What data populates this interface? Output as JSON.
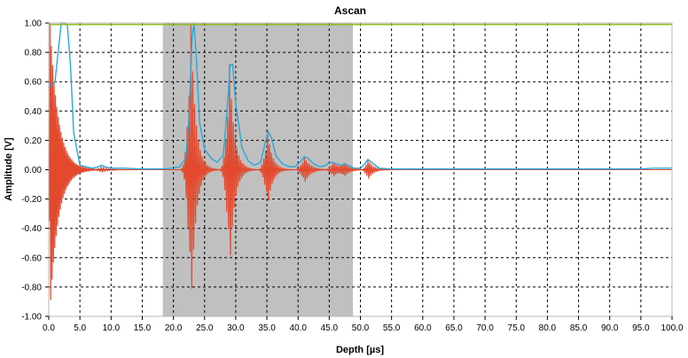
{
  "chart_data": {
    "type": "line",
    "title": "Ascan",
    "xlabel": "Depth [µs]",
    "ylabel": "Amplitude [V]",
    "xlim": [
      0,
      100
    ],
    "ylim": [
      -1,
      1
    ],
    "grid": true,
    "x_ticks": [
      0,
      5,
      10,
      15,
      20,
      25,
      30,
      35,
      40,
      45,
      50,
      55,
      60,
      65,
      70,
      75,
      80,
      85,
      90,
      95,
      100
    ],
    "x_tick_labels": [
      "0.0",
      "5.0",
      "10.0",
      "15.0",
      "20.0",
      "25.0",
      "30.0",
      "35.0",
      "40.0",
      "45.0",
      "50.0",
      "55.0",
      "60.0",
      "65.0",
      "70.0",
      "75.0",
      "80.0",
      "85.0",
      "90.0",
      "95.0",
      "100.0"
    ],
    "y_ticks": [
      1,
      0.8,
      0.6,
      0.4,
      0.2,
      0,
      -0.2,
      -0.4,
      -0.6,
      -0.8,
      -1
    ],
    "y_tick_labels": [
      "1.00",
      "0.80",
      "0.60",
      "0.40",
      "0.20",
      "0.00",
      "-0.20",
      "-0.40",
      "-0.60",
      "-0.80",
      "-1.00"
    ],
    "gate_region": {
      "x_start": 18.3,
      "x_end": 48.8,
      "color": "#c0c0c0"
    },
    "threshold_line": {
      "y": 0.99,
      "color": "#8fbc1e"
    },
    "colors": {
      "waveform": "#e2492d",
      "envelope": "#2aa8d8",
      "grid": "#000000",
      "frame": "#b4b4b4"
    },
    "series": [
      {
        "kind": "waveform",
        "color": "#e2492d",
        "pulses": [
          {
            "t0": 0.2,
            "amp": 1.0,
            "decay": 1.3,
            "rise": 0.1,
            "period": 0.22
          },
          {
            "t0": 22.8,
            "amp": 1.0,
            "decay": 0.75,
            "rise": 0.5,
            "period": 0.3
          },
          {
            "t0": 29.0,
            "amp": 0.72,
            "decay": 0.75,
            "rise": 0.5,
            "period": 0.3
          },
          {
            "t0": 35.1,
            "amp": 0.26,
            "decay": 0.75,
            "rise": 0.5,
            "period": 0.3
          },
          {
            "t0": 41.0,
            "amp": 0.09,
            "decay": 0.9,
            "rise": 0.5,
            "period": 0.3
          },
          {
            "t0": 45.6,
            "amp": 0.05,
            "decay": 0.9,
            "rise": 0.5,
            "period": 0.3
          },
          {
            "t0": 47.4,
            "amp": 0.04,
            "decay": 0.9,
            "rise": 0.5,
            "period": 0.3
          },
          {
            "t0": 51.2,
            "amp": 0.07,
            "decay": 0.8,
            "rise": 0.4,
            "period": 0.3
          },
          {
            "t0": 8.4,
            "amp": 0.02,
            "decay": 1.2,
            "rise": 0.5,
            "period": 0.4
          }
        ]
      },
      {
        "kind": "envelope",
        "color": "#2aa8d8",
        "x": [
          0,
          1.0,
          2.0,
          2.6,
          3.0,
          3.5,
          4.0,
          5.0,
          6.0,
          7.0,
          8.0,
          8.5,
          9.0,
          10.0,
          12.0,
          15.0,
          18.0,
          20.0,
          21.0,
          22.0,
          22.5,
          23.0,
          23.3,
          23.7,
          24.2,
          25.0,
          26.0,
          27.0,
          28.0,
          28.6,
          29.1,
          29.5,
          30.0,
          31.0,
          32.0,
          33.0,
          34.0,
          34.7,
          35.2,
          35.7,
          36.5,
          37.5,
          38.5,
          39.5,
          40.5,
          41.0,
          41.5,
          42.5,
          43.5,
          44.5,
          45.0,
          45.5,
          46.2,
          47.0,
          47.5,
          48.0,
          49.0,
          50.0,
          50.7,
          51.2,
          51.8,
          53.0,
          55.0,
          60.0,
          65.0,
          70.0,
          75.0,
          80.0,
          85.0,
          90.0,
          95.0,
          97.0,
          100.0
        ],
        "y": [
          0.56,
          0.6,
          1.0,
          1.0,
          0.98,
          0.7,
          0.25,
          0.03,
          0.02,
          0.01,
          0.02,
          0.03,
          0.02,
          0.01,
          0.01,
          0.005,
          0.005,
          0.01,
          0.02,
          0.08,
          0.35,
          0.9,
          1.0,
          0.75,
          0.32,
          0.14,
          0.08,
          0.05,
          0.1,
          0.4,
          0.71,
          0.72,
          0.45,
          0.15,
          0.06,
          0.03,
          0.05,
          0.18,
          0.26,
          0.22,
          0.09,
          0.04,
          0.02,
          0.02,
          0.06,
          0.09,
          0.08,
          0.04,
          0.02,
          0.03,
          0.05,
          0.05,
          0.04,
          0.03,
          0.04,
          0.03,
          0.01,
          0.01,
          0.04,
          0.07,
          0.05,
          0.01,
          0.005,
          0.005,
          0.005,
          0.005,
          0.005,
          0.005,
          0.005,
          0.005,
          0.005,
          0.01,
          0.01
        ]
      }
    ]
  }
}
